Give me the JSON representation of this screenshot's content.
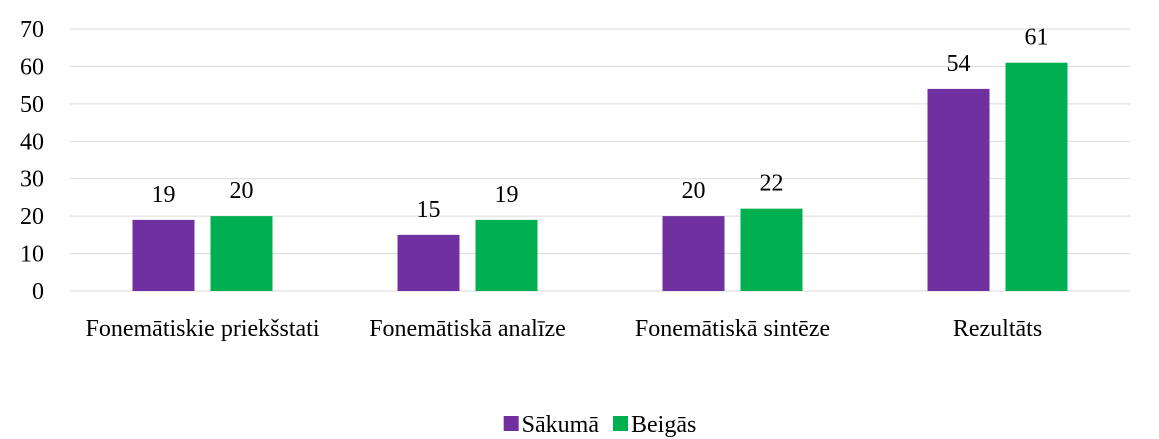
{
  "chart_data": {
    "type": "bar",
    "categories": [
      "Fonemātiskie priekšstati",
      "Fonemātiskā analīze",
      "Fonemātiskā sintēze",
      "Rezultāts"
    ],
    "series": [
      {
        "name": "Sākumā",
        "color": "#7030a0",
        "values": [
          19,
          15,
          20,
          54
        ]
      },
      {
        "name": "Beigās",
        "color": "#00b050",
        "values": [
          20,
          19,
          22,
          61
        ]
      }
    ],
    "ylim": [
      0,
      70
    ],
    "yticks": [
      0,
      10,
      20,
      30,
      40,
      50,
      60,
      70
    ],
    "grid": true,
    "legend": "bottom"
  }
}
